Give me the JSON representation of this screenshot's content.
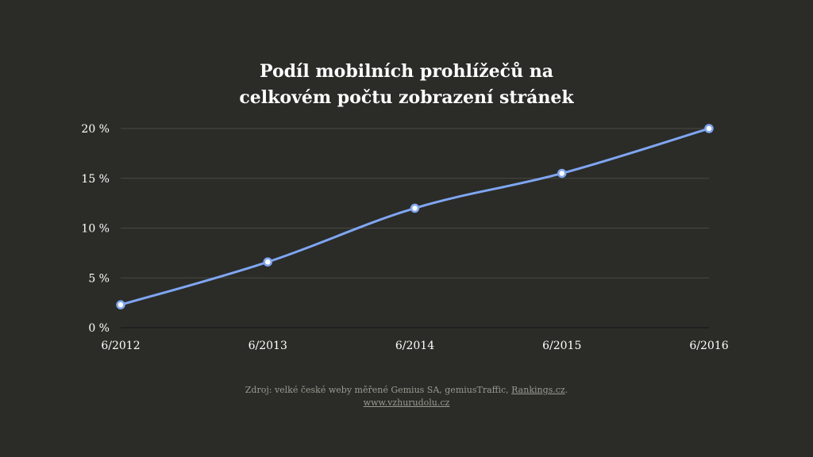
{
  "chart_data": {
    "type": "line",
    "title_lines": [
      "Podíl mobilních prohlížečů na",
      "celkovém počtu zobrazení stránek"
    ],
    "categories": [
      "6/2012",
      "6/2013",
      "6/2014",
      "6/2015",
      "6/2016"
    ],
    "series": [
      {
        "values": [
          2.3,
          6.6,
          12.0,
          15.5,
          20.0
        ],
        "color": "#7ea6f2"
      }
    ],
    "y_ticks": [
      "0 %",
      "5 %",
      "10 %",
      "15 %",
      "20 %"
    ],
    "ylim": [
      0,
      20
    ],
    "y_step": 5,
    "grid": true,
    "legend": "none"
  },
  "source": {
    "prefix": "Zdroj: velké české weby měřené Gemius SA, gemiusTraffic, ",
    "link1": "Rankings.cz",
    "suffix": ".",
    "link2": "www.vzhurudolu.cz"
  },
  "colors": {
    "background": "#2b2b27",
    "grid": "#4a4a45",
    "line": "#7ea6f2",
    "text": "#ffffff",
    "muted": "#9a9a93"
  }
}
